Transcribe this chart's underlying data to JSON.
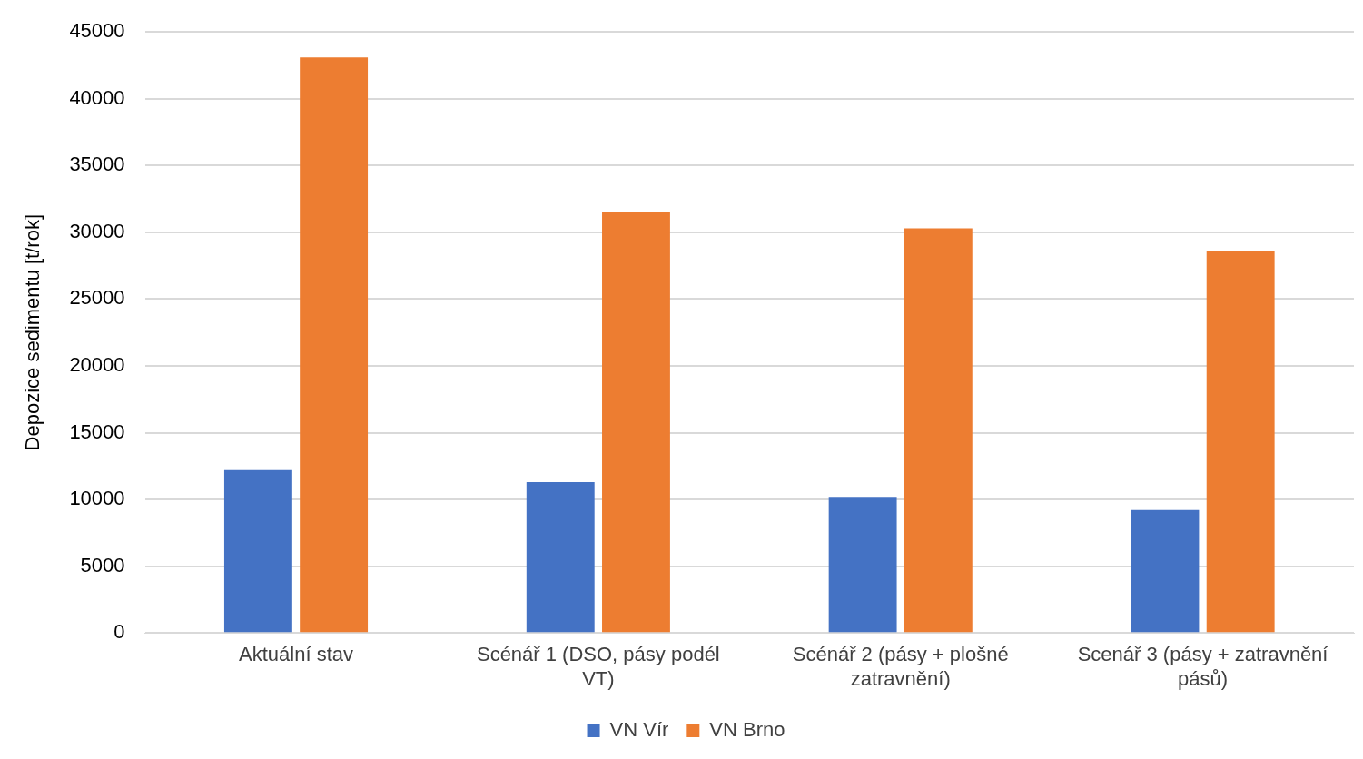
{
  "chart_data": {
    "type": "bar",
    "ylabel": "Depozice sedimentu [t/rok]",
    "categories": [
      "Aktuální stav",
      "Scénář 1 (DSO, pásy podél VT)",
      "Scénář 2 (pásy + plošné zatravnění)",
      "Scenář 3 (pásy + zatravnění pásů)"
    ],
    "series": [
      {
        "name": "VN Vír",
        "color": "#4472c4",
        "values": [
          12200,
          11300,
          10200,
          9200
        ]
      },
      {
        "name": "VN Brno",
        "color": "#ed7d31",
        "values": [
          43100,
          31500,
          30300,
          28600
        ]
      }
    ],
    "ylim": [
      0,
      45000
    ],
    "yticks": [
      0,
      5000,
      10000,
      15000,
      20000,
      25000,
      30000,
      35000,
      40000,
      45000
    ],
    "grid": "y",
    "legend": "bottom"
  }
}
